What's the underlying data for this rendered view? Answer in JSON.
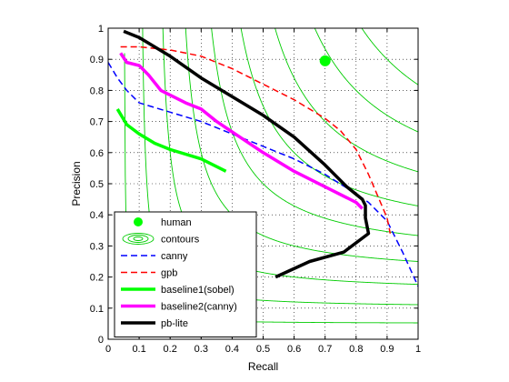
{
  "chart_data": {
    "type": "line",
    "xlabel": "Recall",
    "ylabel": "Precision",
    "xlim": [
      0,
      1
    ],
    "ylim": [
      0,
      1
    ],
    "xticks": [
      "0",
      "0.1",
      "0.2",
      "0.3",
      "0.4",
      "0.5",
      "0.6",
      "0.7",
      "0.8",
      "0.9",
      "1"
    ],
    "yticks": [
      "0",
      "0.1",
      "0.2",
      "0.3",
      "0.4",
      "0.5",
      "0.6",
      "0.7",
      "0.8",
      "0.9",
      "1"
    ],
    "grid": true,
    "legend_position": "bottom-left",
    "contour_levels": [
      0.1,
      0.2,
      0.3,
      0.4,
      0.5,
      0.6,
      0.7,
      0.8,
      0.9
    ],
    "series": [
      {
        "name": "human",
        "style": "point",
        "color": "#00ff00",
        "x": [
          0.7
        ],
        "y": [
          0.895
        ]
      },
      {
        "name": "contours",
        "style": "contours",
        "color": "#00cc00",
        "x": [],
        "y": []
      },
      {
        "name": "canny",
        "style": "dashed",
        "color": "#0000ff",
        "x": [
          0.0,
          0.03,
          0.06,
          0.1,
          0.2,
          0.3,
          0.4,
          0.5,
          0.6,
          0.7,
          0.78,
          0.84,
          0.9,
          0.95,
          1.0
        ],
        "y": [
          0.89,
          0.84,
          0.8,
          0.76,
          0.73,
          0.7,
          0.66,
          0.62,
          0.58,
          0.53,
          0.48,
          0.44,
          0.38,
          0.28,
          0.17
        ]
      },
      {
        "name": "gpb",
        "style": "dashed",
        "color": "#ff0000",
        "x": [
          0.04,
          0.1,
          0.2,
          0.3,
          0.4,
          0.5,
          0.6,
          0.7,
          0.75,
          0.8,
          0.84,
          0.87,
          0.9,
          0.91
        ],
        "y": [
          0.94,
          0.94,
          0.93,
          0.91,
          0.87,
          0.82,
          0.77,
          0.71,
          0.67,
          0.61,
          0.53,
          0.46,
          0.39,
          0.34
        ]
      },
      {
        "name": "baseline1(sobel)",
        "style": "solid-thick",
        "color": "#00ff00",
        "x": [
          0.03,
          0.06,
          0.1,
          0.15,
          0.2,
          0.3,
          0.38
        ],
        "y": [
          0.74,
          0.69,
          0.66,
          0.63,
          0.61,
          0.58,
          0.54
        ]
      },
      {
        "name": "baseline2(canny)",
        "style": "solid-thick",
        "color": "#ff00ff",
        "x": [
          0.04,
          0.06,
          0.1,
          0.13,
          0.17,
          0.25,
          0.3,
          0.35,
          0.5,
          0.6,
          0.7,
          0.8,
          0.82
        ],
        "y": [
          0.92,
          0.89,
          0.88,
          0.85,
          0.8,
          0.76,
          0.74,
          0.7,
          0.6,
          0.54,
          0.49,
          0.44,
          0.42
        ]
      },
      {
        "name": "pb-lite",
        "style": "solid-thick",
        "color": "#000000",
        "x": [
          0.05,
          0.1,
          0.2,
          0.3,
          0.4,
          0.5,
          0.6,
          0.7,
          0.77,
          0.82,
          0.83,
          0.83,
          0.84,
          0.76,
          0.65,
          0.54
        ],
        "y": [
          0.99,
          0.97,
          0.91,
          0.84,
          0.78,
          0.72,
          0.65,
          0.56,
          0.49,
          0.45,
          0.43,
          0.39,
          0.34,
          0.28,
          0.25,
          0.2
        ]
      }
    ]
  }
}
